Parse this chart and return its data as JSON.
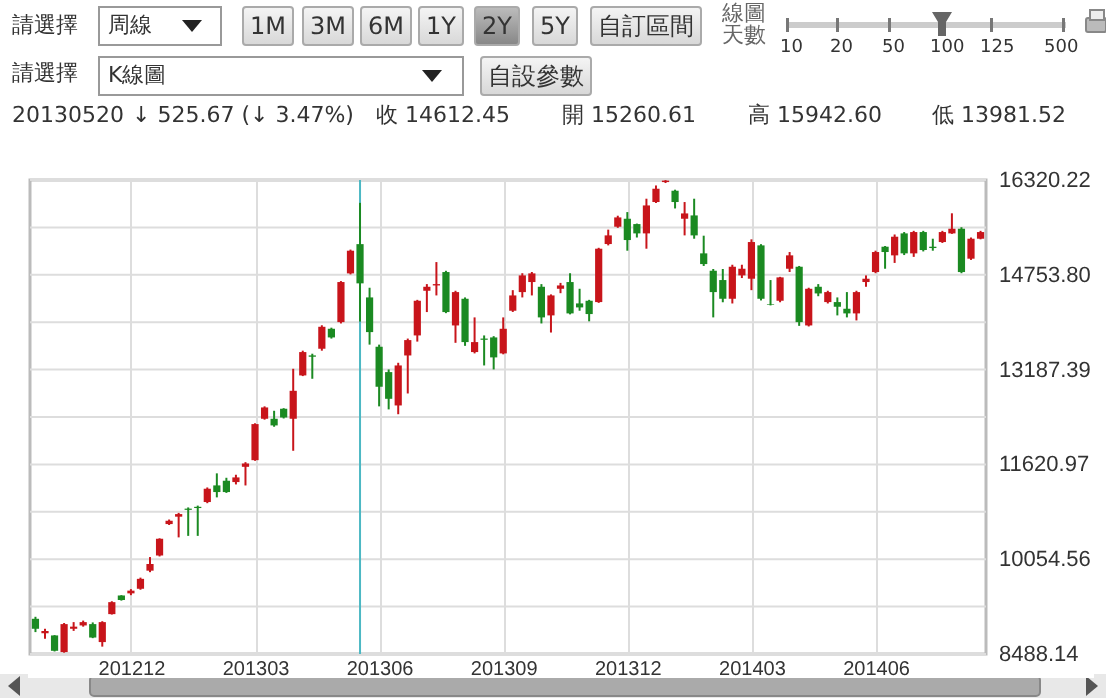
{
  "chart_data": {
    "type": "candlestick",
    "x": [
      "2012-09-24",
      "2012-10-01",
      "2012-10-08",
      "2012-10-15",
      "2012-10-22",
      "2012-10-29",
      "2012-11-05",
      "2012-11-12",
      "2012-11-19",
      "2012-11-26",
      "2012-12-03",
      "2012-12-10",
      "2012-12-17",
      "2012-12-24",
      "2012-12-31",
      "2013-01-07",
      "2013-01-14",
      "2013-01-21",
      "2013-01-28",
      "2013-02-04",
      "2013-02-11",
      "2013-02-18",
      "2013-02-25",
      "2013-03-04",
      "2013-03-11",
      "2013-03-18",
      "2013-03-25",
      "2013-04-01",
      "2013-04-08",
      "2013-04-15",
      "2013-04-22",
      "2013-04-29",
      "2013-05-06",
      "2013-05-13",
      "2013-05-20",
      "2013-05-27",
      "2013-06-03",
      "2013-06-10",
      "2013-06-17",
      "2013-06-24",
      "2013-07-01",
      "2013-07-08",
      "2013-07-15",
      "2013-07-22",
      "2013-07-29",
      "2013-08-05",
      "2013-08-12",
      "2013-08-19",
      "2013-08-26",
      "2013-09-02",
      "2013-09-09",
      "2013-09-16",
      "2013-09-23",
      "2013-09-30",
      "2013-10-07",
      "2013-10-14",
      "2013-10-21",
      "2013-10-28",
      "2013-11-04",
      "2013-11-11",
      "2013-11-18",
      "2013-11-25",
      "2013-12-02",
      "2013-12-09",
      "2013-12-16",
      "2013-12-23",
      "2013-12-30",
      "2014-01-06",
      "2014-01-13",
      "2014-01-20",
      "2014-01-27",
      "2014-02-03",
      "2014-02-10",
      "2014-02-17",
      "2014-02-24",
      "2014-03-03",
      "2014-03-10",
      "2014-03-17",
      "2014-03-24",
      "2014-03-31",
      "2014-04-07",
      "2014-04-14",
      "2014-04-21",
      "2014-04-28",
      "2014-05-05",
      "2014-05-12",
      "2014-05-19",
      "2014-05-26",
      "2014-06-02",
      "2014-06-09",
      "2014-06-16",
      "2014-06-23",
      "2014-06-30",
      "2014-07-07",
      "2014-07-14",
      "2014-07-21",
      "2014-07-28",
      "2014-08-04",
      "2014-08-11",
      "2014-08-18"
    ],
    "ohlc": [
      [
        9070,
        9103,
        8850,
        8905
      ],
      [
        8830,
        8905,
        8740,
        8870
      ],
      [
        8795,
        8800,
        8530,
        8541
      ],
      [
        8520,
        9000,
        8510,
        8982
      ],
      [
        8905,
        9015,
        8870,
        8940
      ],
      [
        8960,
        9040,
        8940,
        9015
      ],
      [
        8982,
        9010,
        8750,
        8760
      ],
      [
        8685,
        9030,
        8610,
        9015
      ],
      [
        9147,
        9360,
        9140,
        9345
      ],
      [
        9455,
        9460,
        9370,
        9380
      ],
      [
        9490,
        9560,
        9460,
        9535
      ],
      [
        9566,
        9750,
        9550,
        9730
      ],
      [
        9865,
        10090,
        9840,
        9975
      ],
      [
        10117,
        10400,
        10100,
        10393
      ],
      [
        10635,
        10710,
        10620,
        10690
      ],
      [
        10757,
        10820,
        10415,
        10800
      ],
      [
        10890,
        10910,
        10440,
        10870
      ],
      [
        10920,
        10940,
        10440,
        10900
      ],
      [
        10999,
        11240,
        10980,
        11219
      ],
      [
        11274,
        11473,
        11076,
        11164
      ],
      [
        11351,
        11400,
        11150,
        11164
      ],
      [
        11329,
        11450,
        11290,
        11406
      ],
      [
        11581,
        11658,
        11273,
        11636
      ],
      [
        11691,
        12300,
        11680,
        12287
      ],
      [
        12375,
        12580,
        12360,
        12562
      ],
      [
        12375,
        12507,
        12243,
        12265
      ],
      [
        12540,
        12550,
        12380,
        12397
      ],
      [
        12375,
        13201,
        11846,
        12837
      ],
      [
        13091,
        13500,
        13080,
        13477
      ],
      [
        13422,
        13450,
        13036,
        13400
      ],
      [
        13532,
        13920,
        13500,
        13895
      ],
      [
        13862,
        13880,
        13700,
        13719
      ],
      [
        13972,
        14650,
        13950,
        14634
      ],
      [
        14777,
        15170,
        14760,
        15152
      ],
      [
        15260.61,
        15942.6,
        13981.52,
        14612.45
      ],
      [
        14380,
        14540,
        13600,
        13807
      ],
      [
        13565,
        13600,
        12580,
        12904
      ],
      [
        13146,
        13190,
        12530,
        12705
      ],
      [
        12595,
        13300,
        12450,
        13256
      ],
      [
        13421,
        13700,
        12793,
        13675
      ],
      [
        13752,
        14340,
        13650,
        14325
      ],
      [
        14490,
        14600,
        14138,
        14556
      ],
      [
        14578,
        14964,
        14413,
        14600
      ],
      [
        14799,
        14820,
        14120,
        14138
      ],
      [
        13917,
        14490,
        13630,
        14468
      ],
      [
        14358,
        14380,
        13580,
        13642
      ],
      [
        13477,
        14050,
        13455,
        13642
      ],
      [
        13700,
        13752,
        13256,
        13680
      ],
      [
        13719,
        13740,
        13190,
        13389
      ],
      [
        13455,
        14050,
        13440,
        13862
      ],
      [
        14160,
        14500,
        14140,
        14413
      ],
      [
        14468,
        14780,
        14380,
        14744
      ],
      [
        14634,
        14800,
        14413,
        14777
      ],
      [
        14556,
        14600,
        13950,
        14050
      ],
      [
        14083,
        14430,
        13800,
        14413
      ],
      [
        14523,
        14620,
        14450,
        14578
      ],
      [
        14634,
        14780,
        14100,
        14116
      ],
      [
        14281,
        14523,
        14160,
        14215
      ],
      [
        14325,
        14340,
        13985,
        14105
      ],
      [
        14303,
        15200,
        14290,
        15185
      ],
      [
        15262,
        15500,
        15240,
        15405
      ],
      [
        15548,
        15730,
        15530,
        15702
      ],
      [
        15680,
        15790,
        15152,
        15328
      ],
      [
        15592,
        15600,
        15370,
        15438
      ],
      [
        15438,
        16011,
        15185,
        15900
      ],
      [
        15956,
        16230,
        15940,
        16176
      ],
      [
        16286,
        16318,
        16270,
        16310
      ],
      [
        16143,
        16160,
        15850,
        15956
      ],
      [
        15680,
        15956,
        15405,
        15768
      ],
      [
        15735,
        16011,
        15350,
        15405
      ],
      [
        15108,
        15400,
        14900,
        14931
      ],
      [
        14821,
        14850,
        14050,
        14468
      ],
      [
        14667,
        14850,
        14300,
        14358
      ],
      [
        14358,
        14920,
        14280,
        14887
      ],
      [
        14744,
        14920,
        14700,
        14854
      ],
      [
        14689,
        15340,
        14500,
        15295
      ],
      [
        15240,
        15260,
        14330,
        14358
      ],
      [
        14270,
        14667,
        14248,
        14260
      ],
      [
        14325,
        14720,
        14300,
        14711
      ],
      [
        14854,
        15130,
        14800,
        15075
      ],
      [
        14887,
        14900,
        13910,
        13972
      ],
      [
        13917,
        14540,
        13900,
        14523
      ],
      [
        14556,
        14600,
        14400,
        14446
      ],
      [
        14303,
        14490,
        14280,
        14468
      ],
      [
        14303,
        14380,
        14083,
        14226
      ],
      [
        14193,
        14468,
        14050,
        14116
      ],
      [
        14116,
        14490,
        14000,
        14468
      ],
      [
        14634,
        14744,
        14556,
        14689
      ],
      [
        14799,
        15152,
        14780,
        15130
      ],
      [
        15218,
        15230,
        14854,
        15130
      ],
      [
        15075,
        15420,
        14950,
        15383
      ],
      [
        15438,
        15460,
        15080,
        15108
      ],
      [
        15108,
        15480,
        15050,
        15460
      ],
      [
        15460,
        15480,
        15140,
        15163
      ],
      [
        15218,
        15350,
        15152,
        15196
      ],
      [
        15295,
        15480,
        15280,
        15460
      ],
      [
        15438,
        15770,
        15430,
        15515
      ],
      [
        15515,
        15540,
        14780,
        14799
      ],
      [
        15020,
        15370,
        15000,
        15350
      ],
      [
        15350,
        15480,
        15340,
        15460
      ]
    ],
    "colors": [
      "#1b8a22",
      "#c8151b",
      "#1b8a22",
      "#c8151b",
      "#c8151b",
      "#c8151b",
      "#1b8a22",
      "#c8151b",
      "#c8151b",
      "#1b8a22",
      "#c8151b",
      "#c8151b",
      "#c8151b",
      "#c8151b",
      "#c8151b",
      "#c8151b",
      "#1b8a22",
      "#1b8a22",
      "#c8151b",
      "#1b8a22",
      "#1b8a22",
      "#c8151b",
      "#c8151b",
      "#c8151b",
      "#c8151b",
      "#1b8a22",
      "#1b8a22",
      "#c8151b",
      "#c8151b",
      "#1b8a22",
      "#c8151b",
      "#1b8a22",
      "#c8151b",
      "#c8151b",
      "#1b8a22",
      "#1b8a22",
      "#1b8a22",
      "#1b8a22",
      "#c8151b",
      "#c8151b",
      "#c8151b",
      "#c8151b",
      "#c8151b",
      "#1b8a22",
      "#c8151b",
      "#1b8a22",
      "#c8151b",
      "#1b8a22",
      "#1b8a22",
      "#c8151b",
      "#c8151b",
      "#c8151b",
      "#c8151b",
      "#1b8a22",
      "#c8151b",
      "#c8151b",
      "#1b8a22",
      "#1b8a22",
      "#1b8a22",
      "#c8151b",
      "#c8151b",
      "#c8151b",
      "#1b8a22",
      "#1b8a22",
      "#c8151b",
      "#c8151b",
      "#c8151b",
      "#1b8a22",
      "#c8151b",
      "#1b8a22",
      "#1b8a22",
      "#1b8a22",
      "#1b8a22",
      "#c8151b",
      "#c8151b",
      "#c8151b",
      "#1b8a22",
      "#1b8a22",
      "#c8151b",
      "#c8151b",
      "#1b8a22",
      "#c8151b",
      "#1b8a22",
      "#c8151b",
      "#1b8a22",
      "#1b8a22",
      "#c8151b",
      "#c8151b",
      "#c8151b",
      "#1b8a22",
      "#c8151b",
      "#1b8a22",
      "#c8151b",
      "#1b8a22",
      "#1b8a22",
      "#c8151b",
      "#c8151b",
      "#1b8a22",
      "#c8151b",
      "#c8151b"
    ],
    "xlim": [
      "2012-09-20",
      "2014-08-22"
    ],
    "xticks": [
      {
        "value": "2012-12-03",
        "label": "201212"
      },
      {
        "value": "2013-03-04",
        "label": "201303"
      },
      {
        "value": "2013-06-03",
        "label": "201306"
      },
      {
        "value": "2013-09-02",
        "label": "201309"
      },
      {
        "value": "2013-12-02",
        "label": "201312"
      },
      {
        "value": "2014-03-03",
        "label": "201403"
      },
      {
        "value": "2014-06-02",
        "label": "201406"
      }
    ],
    "ylim": [
      8488.14,
      16320.22
    ],
    "yticks": [
      {
        "value": 8488.14,
        "label": "8488.14"
      },
      {
        "value": 9271.35,
        "label": null
      },
      {
        "value": 10054.56,
        "label": "10054.56"
      },
      {
        "value": 10837.765,
        "label": null
      },
      {
        "value": 11620.97,
        "label": "11620.97"
      },
      {
        "value": 12404.18,
        "label": null
      },
      {
        "value": 13187.39,
        "label": "13187.39"
      },
      {
        "value": 13970.595,
        "label": null
      },
      {
        "value": 14753.8,
        "label": "14753.80"
      },
      {
        "value": 15537.01,
        "label": null
      },
      {
        "value": 16320.22,
        "label": "16320.22"
      }
    ],
    "grid": true,
    "ref_lines": [
      {
        "axis": "x",
        "value": "2013-05-20",
        "color": "#4cb8c4"
      }
    ],
    "annotations": [
      "請選擇",
      "周線",
      "1M",
      "3M",
      "6M",
      "1Y",
      "2Y",
      "5Y",
      "自訂區間",
      "線圖天數",
      "10",
      "20",
      "50",
      "100",
      "125",
      "500",
      "請選擇",
      "K線圖",
      "自設參數",
      "20130520",
      "↓ 525.67 (↓ 3.47%)",
      "收 14612.45",
      "開 15260.61",
      "高 15942.60",
      "低 13981.52"
    ]
  }
}
